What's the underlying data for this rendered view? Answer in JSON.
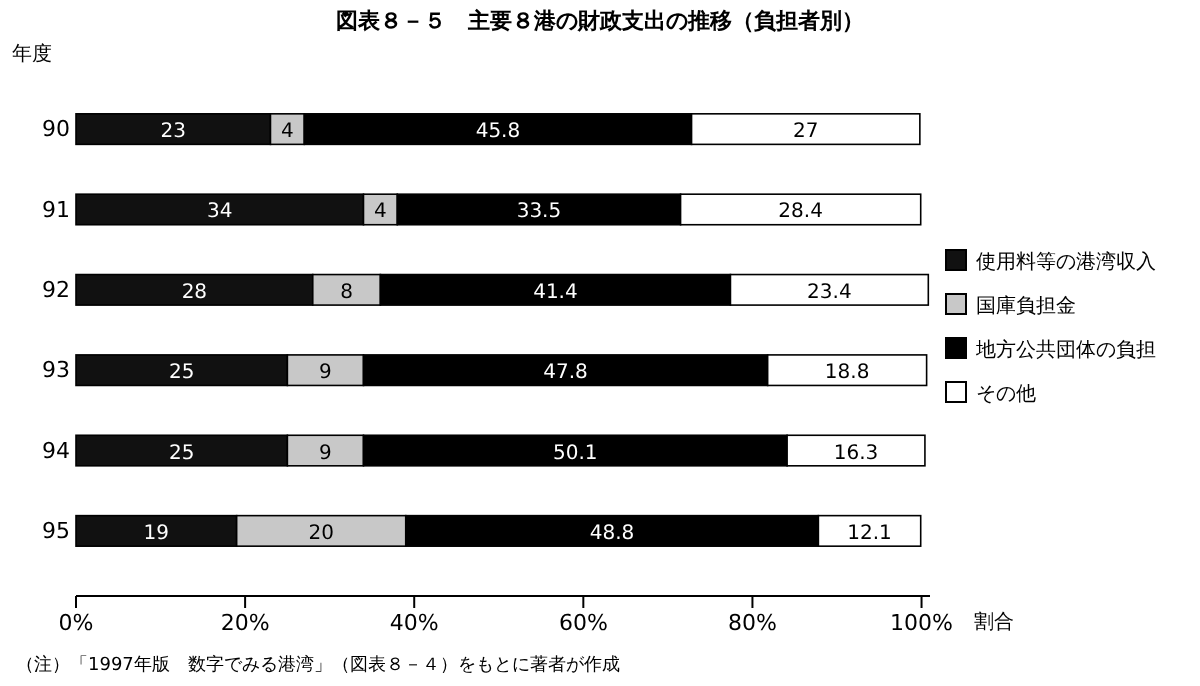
{
  "chart_data": {
    "type": "bar",
    "orientation": "horizontal",
    "stacked": true,
    "title": "図表８－５　主要８港の財政支出の推移（負担者別）",
    "ylabel": "年度",
    "xlabel": "割合",
    "categories": [
      "90",
      "91",
      "92",
      "93",
      "94",
      "95"
    ],
    "series": [
      {
        "name": "使用料等の港湾収入",
        "color": "#111111",
        "values": [
          23,
          34,
          28,
          25,
          25,
          19
        ]
      },
      {
        "name": "国庫負担金",
        "color": "#c8c8c8",
        "values": [
          4,
          4,
          8,
          9,
          9,
          20
        ]
      },
      {
        "name": "地方公共団体の負担",
        "color": "#000000",
        "values": [
          45.8,
          33.5,
          41.4,
          47.8,
          50.1,
          48.8
        ]
      },
      {
        "name": "その他",
        "color": "#ffffff",
        "values": [
          27,
          28.4,
          23.4,
          18.8,
          16.3,
          12.1
        ]
      }
    ],
    "xlim": [
      0,
      101
    ],
    "xticks": [
      {
        "value": 0,
        "label": "0%"
      },
      {
        "value": 20,
        "label": "20%"
      },
      {
        "value": 40,
        "label": "40%"
      },
      {
        "value": 60,
        "label": "60%"
      },
      {
        "value": 80,
        "label": "80%"
      },
      {
        "value": 100,
        "label": "100%"
      }
    ],
    "data_labels": true,
    "grid": false,
    "legend": "right",
    "annotations": [
      "（注）「1997年版　数字でみる港湾」（図表８－４）をもとに著者が作成"
    ]
  }
}
